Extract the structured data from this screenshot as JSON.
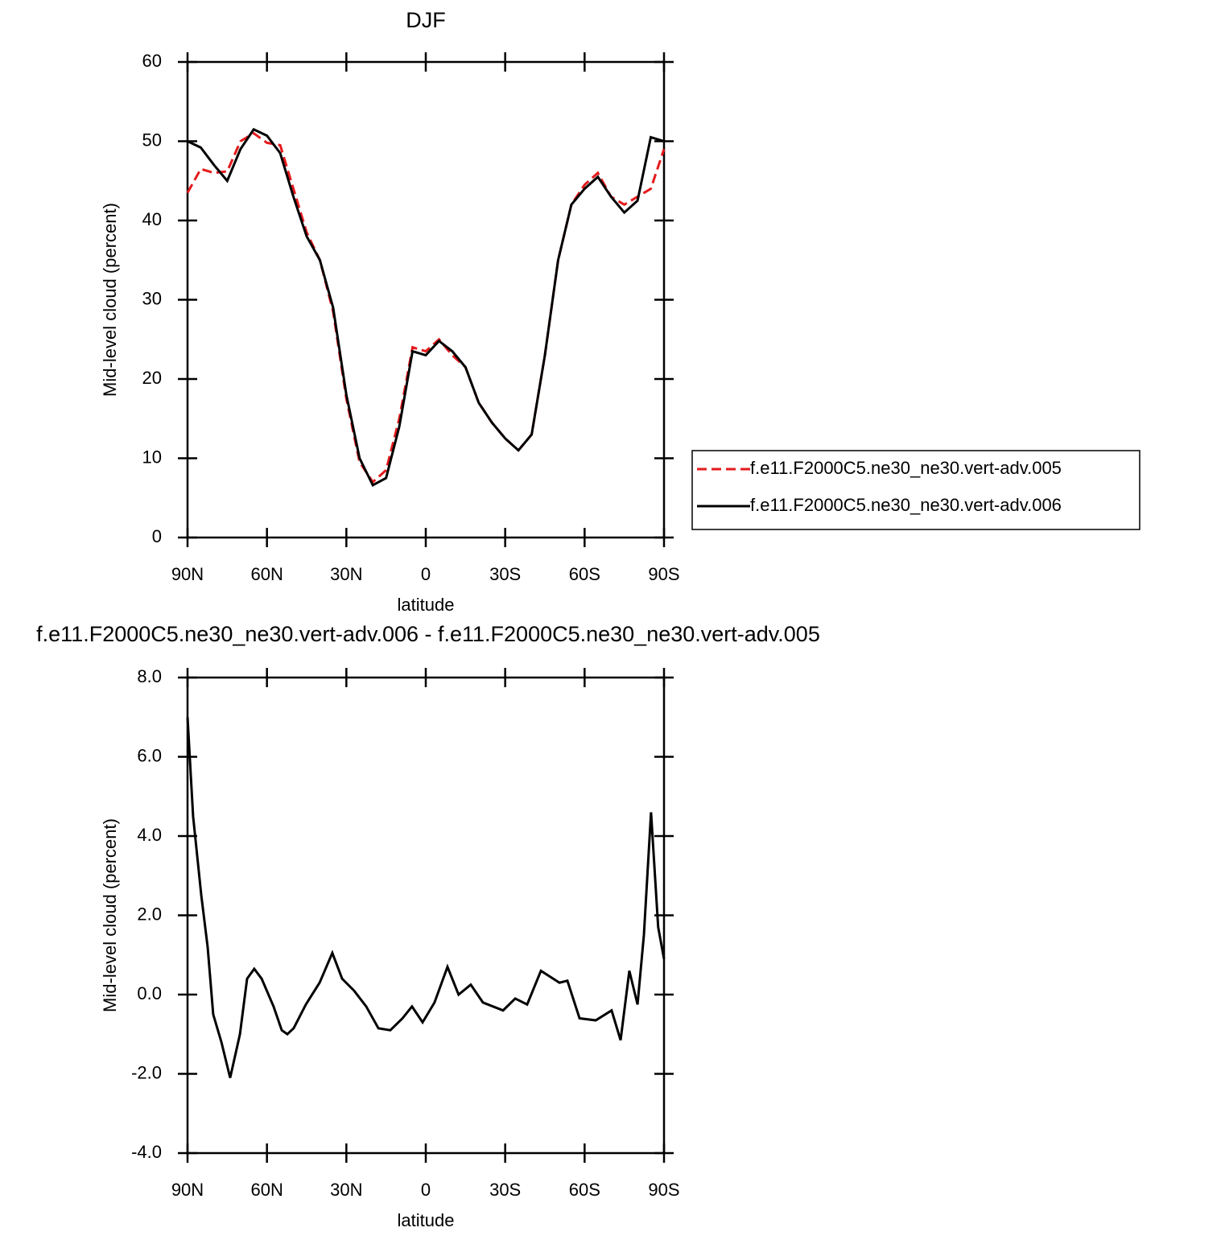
{
  "chart_data": [
    {
      "type": "line",
      "title": "DJF",
      "xlabel": "latitude",
      "ylabel": "Mid-level cloud (percent)",
      "x": [
        90,
        85,
        80,
        75,
        70,
        65,
        60,
        55,
        50,
        45,
        40,
        35,
        30,
        25,
        20,
        15,
        10,
        5,
        0,
        -5,
        -10,
        -15,
        -20,
        -25,
        -30,
        -35,
        -40,
        -45,
        -50,
        -55,
        -60,
        -65,
        -70,
        -75,
        -80,
        -85,
        -90
      ],
      "xlim": [
        90,
        -90
      ],
      "xticks": [
        {
          "value": 90,
          "label": "90N"
        },
        {
          "value": 60,
          "label": "60N"
        },
        {
          "value": 30,
          "label": "30N"
        },
        0,
        {
          "value": -30,
          "label": "30S"
        },
        {
          "value": -60,
          "label": "60S"
        },
        {
          "value": -90,
          "label": "90S"
        }
      ],
      "ylim": [
        0,
        60
      ],
      "yticks": [
        0,
        10,
        20,
        30,
        40,
        50,
        60
      ],
      "legend": "right",
      "series": [
        {
          "name": "f.e11.F2000C5.ne30_ne30.vert-adv.005",
          "color": "#e41a1c",
          "dash": "dashed",
          "values": [
            43.5,
            46.5,
            46,
            46.2,
            50,
            51,
            49.8,
            49.5,
            44,
            38.5,
            35,
            28.5,
            17.5,
            9.5,
            7,
            8.5,
            15,
            24,
            23.5,
            25,
            23,
            21.5,
            17,
            14.5,
            12.5,
            11,
            13,
            23,
            35,
            42,
            44.5,
            46,
            43,
            42,
            43,
            44,
            49
          ]
        },
        {
          "name": "f.e11.F2000C5.ne30_ne30.vert-adv.006",
          "color": "#000000",
          "dash": "solid",
          "values": [
            50,
            49.2,
            47,
            45,
            49,
            51.5,
            50.7,
            48.5,
            43,
            38,
            35,
            29,
            18,
            10,
            6.6,
            7.5,
            14,
            23.5,
            23,
            24.8,
            23.5,
            21.5,
            17,
            14.5,
            12.5,
            11,
            13,
            23,
            35,
            42,
            44,
            45.5,
            43,
            41,
            42.5,
            50.5,
            50
          ]
        }
      ]
    },
    {
      "type": "line",
      "title": "f.e11.F2000C5.ne30_ne30.vert-adv.006 - f.e11.F2000C5.ne30_ne30.vert-adv.005",
      "xlabel": "latitude",
      "ylabel": "Mid-level cloud (percent)",
      "x": [
        90,
        87.9,
        84.8,
        82.4,
        80.3,
        77.2,
        73.9,
        70.2,
        67.5,
        64.8,
        62.0,
        57.5,
        54.4,
        52.3,
        49.9,
        45.3,
        40.1,
        35.3,
        31.6,
        27.1,
        22.5,
        17.9,
        13.4,
        8.8,
        5.2,
        1.2,
        -3.3,
        -8.2,
        -12.4,
        -17.0,
        -21.6,
        -29.2,
        -33.8,
        -38.3,
        -43.5,
        -50.5,
        -53.5,
        -58.1,
        -64.2,
        -70.2,
        -73.6,
        -76.9,
        -80.0,
        -82.4,
        -85.1,
        -87.8,
        -90
      ],
      "xlim": [
        90,
        -90
      ],
      "xticks": [
        {
          "value": 90,
          "label": "90N"
        },
        {
          "value": 60,
          "label": "60N"
        },
        {
          "value": 30,
          "label": "30N"
        },
        0,
        {
          "value": -30,
          "label": "30S"
        },
        {
          "value": -60,
          "label": "60S"
        },
        {
          "value": -90,
          "label": "90S"
        }
      ],
      "ylim": [
        -4,
        8
      ],
      "yticks": [
        {
          "value": -4,
          "label": "-4.0"
        },
        {
          "value": -2,
          "label": "-2.0"
        },
        {
          "value": 0,
          "label": "0.0"
        },
        {
          "value": 2,
          "label": "2.0"
        },
        {
          "value": 4,
          "label": "4.0"
        },
        {
          "value": 6,
          "label": "6.0"
        },
        {
          "value": 8,
          "label": "8.0"
        }
      ],
      "series": [
        {
          "color": "#000000",
          "dash": "solid",
          "values": [
            7.0,
            4.5,
            2.5,
            1.2,
            -0.5,
            -1.2,
            -2.1,
            -1.0,
            0.4,
            0.65,
            0.4,
            -0.3,
            -0.9,
            -1.0,
            -0.85,
            -0.25,
            0.3,
            1.05,
            0.4,
            0.1,
            -0.3,
            -0.85,
            -0.9,
            -0.6,
            -0.3,
            -0.7,
            -0.2,
            0.7,
            0.0,
            0.25,
            -0.2,
            -0.4,
            -0.1,
            -0.25,
            0.6,
            0.3,
            0.35,
            -0.6,
            -0.65,
            -0.4,
            -1.15,
            0.6,
            -0.25,
            1.5,
            4.6,
            1.7,
            0.9
          ]
        }
      ]
    }
  ]
}
